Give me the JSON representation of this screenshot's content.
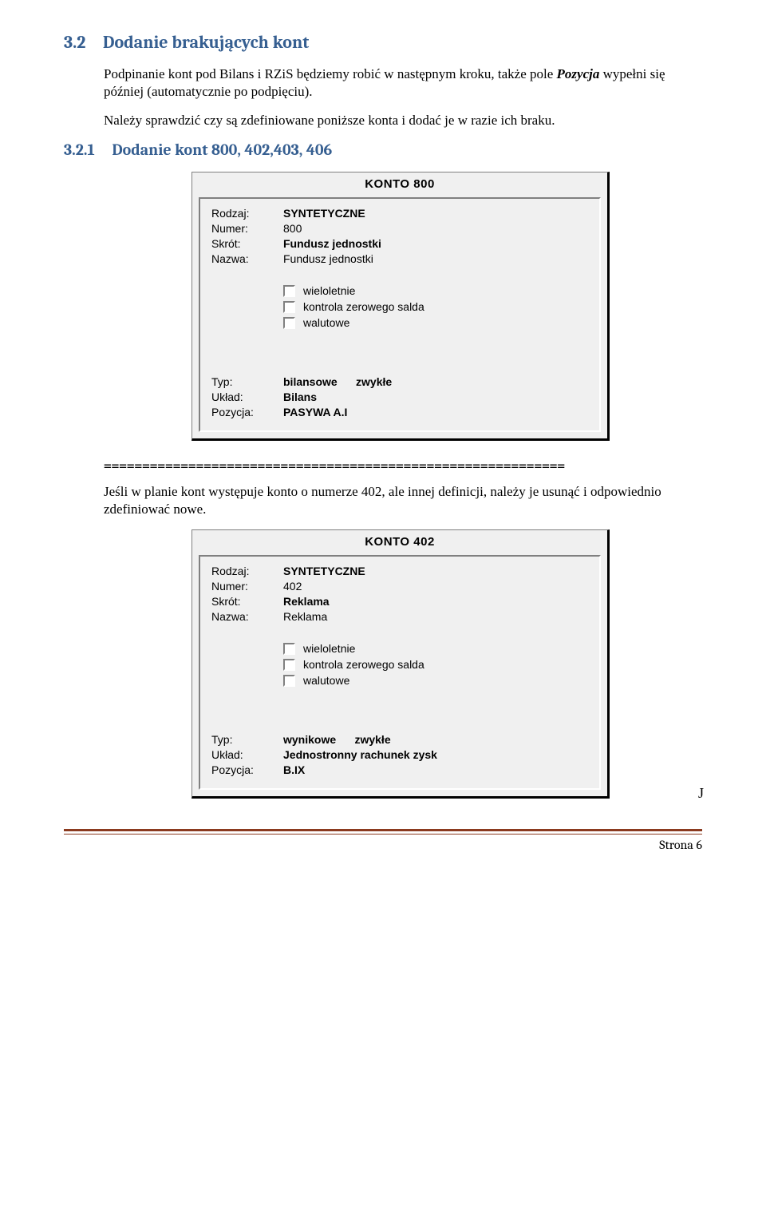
{
  "section": {
    "number": "3.2",
    "title": "Dodanie brakujących kont"
  },
  "paragraph1": {
    "prefix": "Podpinanie kont pod Bilans i RZiS będziemy robić w następnym kroku, także pole ",
    "pozycja": "Pozycja",
    "suffix": " wypełni się później (automatycznie po podpięciu)."
  },
  "paragraph2": "Należy sprawdzić czy są zdefiniowane poniższe konta i dodać je w razie ich braku.",
  "subsection": {
    "number": "3.2.1",
    "title": "Dodanie kont 800, 402,403, 406"
  },
  "form800": {
    "title": "KONTO 800",
    "rows_top": [
      {
        "label": "Rodzaj:",
        "value": "SYNTETYCZNE",
        "bold": true
      },
      {
        "label": "Numer:",
        "value": "800",
        "bold": false
      },
      {
        "label": "Skrót:",
        "value": "Fundusz jednostki",
        "bold": true
      },
      {
        "label": "Nazwa:",
        "value": "Fundusz jednostki",
        "bold": false
      }
    ],
    "checks": [
      {
        "label": "wieloletnie",
        "checked": false
      },
      {
        "label": "kontrola zerowego salda",
        "checked": false
      },
      {
        "label": "walutowe",
        "checked": false
      }
    ],
    "rows_bottom": [
      {
        "label": "Typ:",
        "value": "bilansowe      zwykłe",
        "bold": true
      },
      {
        "label": "Układ:",
        "value": "Bilans",
        "bold": true
      },
      {
        "label": "Pozycja:",
        "value": "PASYWA A.I",
        "bold": true
      }
    ]
  },
  "separator": "============================================================",
  "paragraph3": "Jeśli w planie kont występuje konto o numerze 402, ale innej definicji, należy je usunąć i odpowiednio zdefiniować nowe.",
  "form402": {
    "title": "KONTO 402",
    "rows_top": [
      {
        "label": "Rodzaj:",
        "value": "SYNTETYCZNE",
        "bold": true
      },
      {
        "label": "Numer:",
        "value": "402",
        "bold": false
      },
      {
        "label": "Skrót:",
        "value": "Reklama",
        "bold": true
      },
      {
        "label": "Nazwa:",
        "value": "Reklama",
        "bold": false
      }
    ],
    "checks": [
      {
        "label": "wieloletnie",
        "checked": false
      },
      {
        "label": "kontrola zerowego salda",
        "checked": false
      },
      {
        "label": "walutowe",
        "checked": false
      }
    ],
    "rows_bottom": [
      {
        "label": "Typ:",
        "value": "wynikowe      zwykłe",
        "bold": true
      },
      {
        "label": "Układ:",
        "value": "Jednostronny rachunek zysk",
        "bold": true
      },
      {
        "label": "Pozycja:",
        "value": "B.IX",
        "bold": true
      }
    ]
  },
  "trailing_j": "J",
  "footer": "Strona 6"
}
